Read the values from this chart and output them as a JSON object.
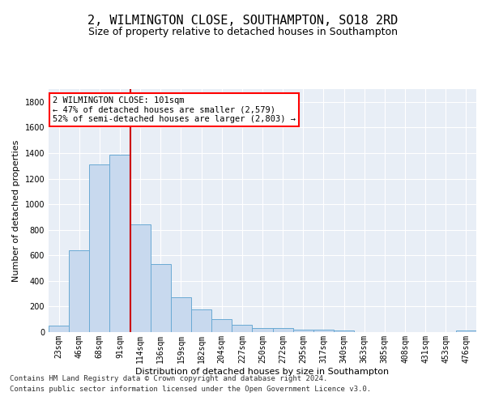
{
  "title": "2, WILMINGTON CLOSE, SOUTHAMPTON, SO18 2RD",
  "subtitle": "Size of property relative to detached houses in Southampton",
  "xlabel": "Distribution of detached houses by size in Southampton",
  "ylabel": "Number of detached properties",
  "categories": [
    "23sqm",
    "46sqm",
    "68sqm",
    "91sqm",
    "114sqm",
    "136sqm",
    "159sqm",
    "182sqm",
    "204sqm",
    "227sqm",
    "250sqm",
    "272sqm",
    "295sqm",
    "317sqm",
    "340sqm",
    "363sqm",
    "385sqm",
    "408sqm",
    "431sqm",
    "453sqm",
    "476sqm"
  ],
  "values": [
    50,
    640,
    1310,
    1390,
    840,
    530,
    270,
    180,
    100,
    60,
    30,
    30,
    20,
    20,
    15,
    2,
    2,
    2,
    2,
    2,
    10
  ],
  "bar_color": "#c8d9ee",
  "bar_edge_color": "#6aaad4",
  "vline_position": 3.5,
  "vline_color": "#cc0000",
  "annotation_line1": "2 WILMINGTON CLOSE: 101sqm",
  "annotation_line2": "← 47% of detached houses are smaller (2,579)",
  "annotation_line3": "52% of semi-detached houses are larger (2,803) →",
  "annotation_box_facecolor": "white",
  "annotation_box_edgecolor": "red",
  "ylim": [
    0,
    1900
  ],
  "yticks": [
    0,
    200,
    400,
    600,
    800,
    1000,
    1200,
    1400,
    1600,
    1800
  ],
  "footnote1": "Contains HM Land Registry data © Crown copyright and database right 2024.",
  "footnote2": "Contains public sector information licensed under the Open Government Licence v3.0.",
  "bg_color": "#e8eef6",
  "grid_color": "white",
  "title_fontsize": 11,
  "subtitle_fontsize": 9,
  "ylabel_fontsize": 8,
  "xlabel_fontsize": 8,
  "tick_fontsize": 7,
  "annotation_fontsize": 7.5,
  "footnote_fontsize": 6.5
}
